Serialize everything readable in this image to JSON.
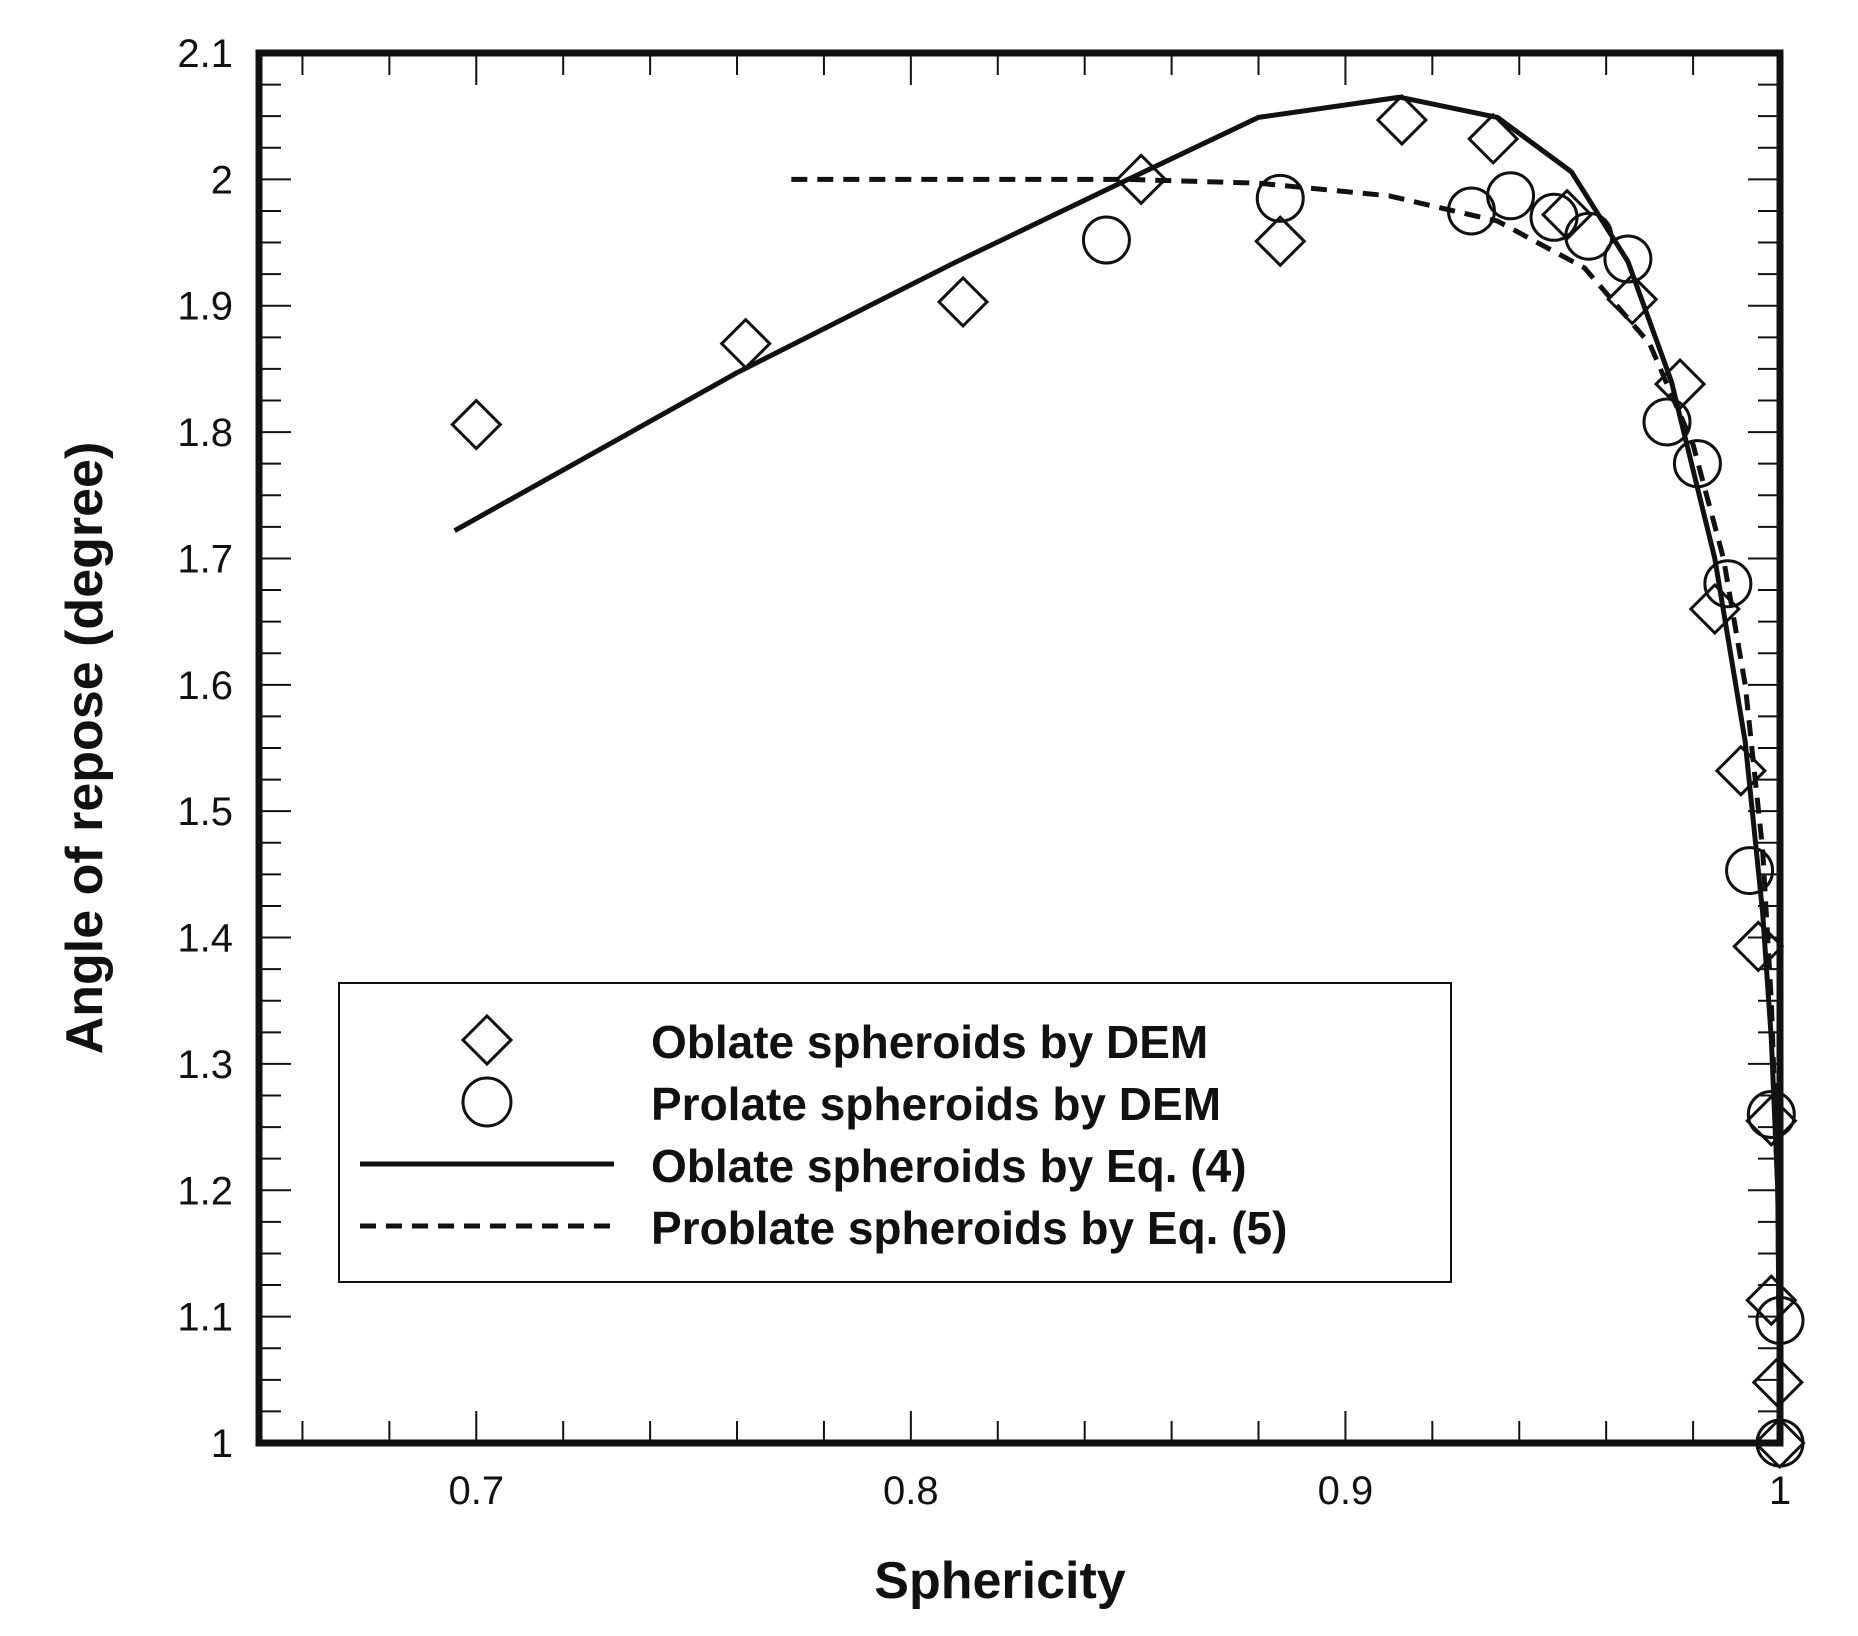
{
  "chart_data": {
    "type": "scatter",
    "xlabel": "Sphericity",
    "ylabel": "Angle of repose (degree)",
    "xlim": [
      0.65,
      1.0
    ],
    "ylim": [
      1.0,
      2.1
    ],
    "x_ticks": [
      "0.7",
      "0.8",
      "0.9",
      "1"
    ],
    "x_tick_values": [
      0.7,
      0.8,
      0.9,
      1.0
    ],
    "y_ticks": [
      "1",
      "1.1",
      "1.2",
      "1.3",
      "1.4",
      "1.5",
      "1.6",
      "1.7",
      "1.8",
      "1.9",
      "2",
      "2.1"
    ],
    "y_tick_values": [
      1.0,
      1.1,
      1.2,
      1.3,
      1.4,
      1.5,
      1.6,
      1.7,
      1.8,
      1.9,
      2.0,
      2.1
    ],
    "legend_position": "bottom-left",
    "grid": false,
    "series": [
      {
        "name": "Oblate spheroids by DEM",
        "marker": "diamond",
        "points": [
          [
            0.7,
            1.806
          ],
          [
            0.762,
            1.87
          ],
          [
            0.812,
            1.903
          ],
          [
            0.853,
            2.0
          ],
          [
            0.885,
            1.951
          ],
          [
            0.913,
            2.047
          ],
          [
            0.934,
            2.032
          ],
          [
            0.951,
            1.972
          ],
          [
            0.966,
            1.905
          ],
          [
            0.977,
            1.838
          ],
          [
            0.985,
            1.66
          ],
          [
            0.991,
            1.532
          ],
          [
            0.995,
            1.393
          ],
          [
            0.998,
            1.255
          ],
          [
            0.998,
            1.113
          ],
          [
            0.9995,
            1.048
          ],
          [
            0.9999,
            1.0
          ]
        ]
      },
      {
        "name": "Prolate spheroids by DEM",
        "marker": "circle",
        "points": [
          [
            0.845,
            1.952
          ],
          [
            0.885,
            1.985
          ],
          [
            0.929,
            1.975
          ],
          [
            0.938,
            1.987
          ],
          [
            0.948,
            1.97
          ],
          [
            0.956,
            1.955
          ],
          [
            0.965,
            1.937
          ],
          [
            0.974,
            1.808
          ],
          [
            0.981,
            1.775
          ],
          [
            0.988,
            1.68
          ],
          [
            0.993,
            1.453
          ],
          [
            0.998,
            1.26
          ],
          [
            1.0,
            1.097
          ],
          [
            1.0,
            1.0
          ]
        ]
      },
      {
        "name": "Oblate spheroids by Eq. (4)",
        "line": "solid",
        "points": [
          [
            0.695,
            1.722
          ],
          [
            0.76,
            1.847
          ],
          [
            0.81,
            1.934
          ],
          [
            0.85,
            2.0
          ],
          [
            0.88,
            2.049
          ],
          [
            0.9125,
            2.065
          ],
          [
            0.935,
            2.049
          ],
          [
            0.952,
            2.006
          ],
          [
            0.965,
            1.935
          ],
          [
            0.975,
            1.84
          ],
          [
            0.985,
            1.7
          ],
          [
            0.992,
            1.555
          ],
          [
            0.996,
            1.42
          ],
          [
            0.998,
            1.32
          ],
          [
            0.9995,
            1.2
          ],
          [
            1.0,
            1.0
          ]
        ]
      },
      {
        "name": "Problate spheroids by Eq. (5)",
        "line": "dashed",
        "points": [
          [
            0.7725,
            2.0
          ],
          [
            0.85,
            2.0
          ],
          [
            0.88,
            1.997
          ],
          [
            0.91,
            1.987
          ],
          [
            0.935,
            1.967
          ],
          [
            0.955,
            1.93
          ],
          [
            0.97,
            1.87
          ],
          [
            0.98,
            1.79
          ],
          [
            0.987,
            1.7
          ],
          [
            0.992,
            1.6
          ],
          [
            0.996,
            1.47
          ],
          [
            0.998,
            1.35
          ],
          [
            0.9995,
            1.2
          ],
          [
            1.0,
            1.0
          ]
        ]
      }
    ]
  }
}
